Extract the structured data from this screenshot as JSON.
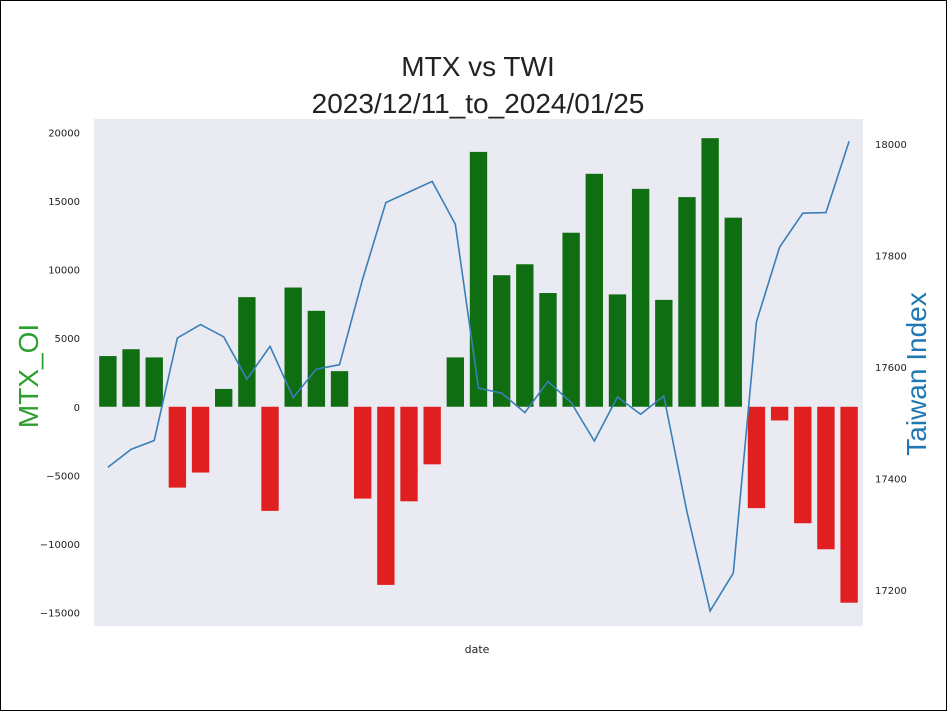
{
  "chart_data": {
    "type": "bar",
    "title_line1": "MTX vs TWI",
    "title_line2": "2023/12/11_to_2024/01/25",
    "xlabel": "date",
    "ylabel_left": "MTX_OI",
    "ylabel_right": "Taiwan Index",
    "left_axis": {
      "ylim": [
        -16000,
        21000
      ],
      "ticks": [
        20000,
        15000,
        10000,
        5000,
        0,
        -5000,
        -10000,
        -15000
      ],
      "tick_labels": [
        "20000",
        "15000",
        "10000",
        "5000",
        "0",
        "−5000",
        "−10000",
        "−15000"
      ]
    },
    "right_axis": {
      "ylim": [
        17135,
        18045
      ],
      "ticks": [
        18000,
        17800,
        17600,
        17400,
        17200
      ],
      "tick_labels": [
        "18000",
        "17800",
        "17600",
        "17400",
        "17200"
      ]
    },
    "grid": false,
    "colors": {
      "positive": "#0f6e11",
      "negative": "#e02020",
      "line": "#3a7fb8",
      "plot_bg": "#eaeaf2",
      "ylabel_left": "#2ca02c",
      "ylabel_right": "#1f77b4"
    },
    "series": [
      {
        "role": "bars",
        "values": [
          3700,
          4200,
          3600,
          -5900,
          -4800,
          1300,
          8000,
          -7600,
          8700,
          7000,
          2600,
          -6700,
          -13000,
          -6900,
          -4200,
          3600,
          18600,
          9600,
          10400,
          8300,
          12700,
          17000,
          8200,
          15900,
          7800,
          15300,
          19600,
          13800,
          -7400,
          -1000,
          -8500,
          -10400,
          -14300
        ]
      },
      {
        "role": "line",
        "values": [
          17420,
          17452,
          17468,
          17652,
          17676,
          17654,
          17578,
          17637,
          17545,
          17596,
          17604,
          17758,
          17895,
          17914,
          17933,
          17856,
          17562,
          17553,
          17518,
          17574,
          17536,
          17467,
          17546,
          17515,
          17548,
          17340,
          17162,
          17230,
          17681,
          17815,
          17876,
          17877,
          18005
        ]
      }
    ]
  }
}
